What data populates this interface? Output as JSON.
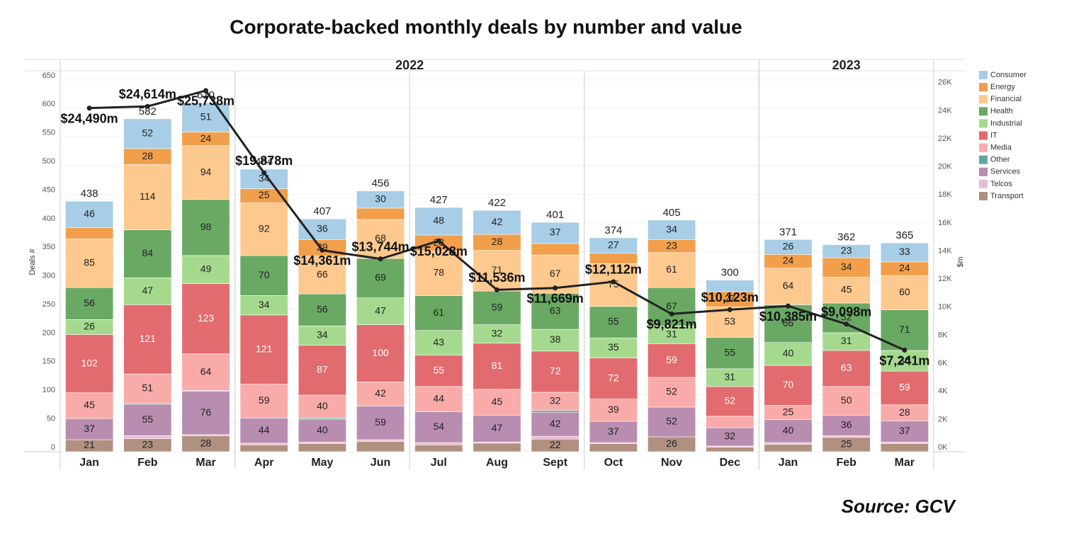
{
  "chart_data": {
    "type": "stacked-bar-line",
    "title": "Corporate-backed monthly deals by number and value",
    "source": "Source: GCV",
    "y_label": "Deals #",
    "y2_label": "$m",
    "categories": [
      "Jan",
      "Feb",
      "Mar",
      "Apr",
      "May",
      "Jun",
      "Jul",
      "Aug",
      "Sept",
      "Oct",
      "Nov",
      "Dec",
      "Jan",
      "Feb",
      "Mar"
    ],
    "year_groups": [
      {
        "name": "2022",
        "months": 12
      },
      {
        "name": "2023",
        "months": 3
      }
    ],
    "totals": [
      438,
      582,
      610,
      494,
      407,
      456,
      427,
      422,
      401,
      374,
      405,
      300,
      371,
      362,
      365
    ],
    "series": [
      {
        "name": "Transport",
        "color": "#b0907f",
        "values": [
          21,
          23,
          28,
          12,
          14,
          18,
          12,
          15,
          22,
          14,
          26,
          8,
          13,
          25,
          14
        ]
      },
      {
        "name": "Telcos",
        "color": "#e8bcd6",
        "values": [
          0,
          5,
          2,
          3,
          3,
          3,
          4,
          2,
          5,
          2,
          0,
          2,
          3,
          3,
          3
        ]
      },
      {
        "name": "Services",
        "color": "#b88db0",
        "values": [
          37,
          55,
          76,
          44,
          40,
          59,
          54,
          47,
          42,
          37,
          52,
          32,
          40,
          36,
          37
        ]
      },
      {
        "name": "Other",
        "color": "#5fa8a2",
        "values": [
          0,
          2,
          1,
          0,
          2,
          0,
          0,
          0,
          3,
          0,
          0,
          0,
          0,
          0,
          0
        ]
      },
      {
        "name": "Media",
        "color": "#f9aba9",
        "values": [
          45,
          51,
          64,
          59,
          40,
          42,
          44,
          45,
          32,
          39,
          52,
          20,
          25,
          50,
          28
        ]
      },
      {
        "name": "IT",
        "color": "#e26b6f",
        "values": [
          102,
          121,
          123,
          121,
          87,
          100,
          55,
          81,
          72,
          72,
          59,
          52,
          70,
          63,
          59
        ]
      },
      {
        "name": "Industrial",
        "color": "#a5da8e",
        "values": [
          26,
          47,
          49,
          34,
          34,
          47,
          43,
          32,
          38,
          35,
          31,
          31,
          40,
          31,
          36
        ]
      },
      {
        "name": "Health",
        "color": "#6aa964",
        "values": [
          56,
          84,
          98,
          70,
          56,
          69,
          61,
          59,
          63,
          55,
          67,
          55,
          66,
          52,
          71
        ]
      },
      {
        "name": "Financial",
        "color": "#fdc98e",
        "values": [
          85,
          114,
          94,
          92,
          66,
          68,
          78,
          71,
          67,
          75,
          61,
          53,
          64,
          45,
          60
        ]
      },
      {
        "name": "Energy",
        "color": "#f19f4b",
        "values": [
          20,
          28,
          24,
          25,
          29,
          20,
          28,
          28,
          20,
          18,
          23,
          27,
          24,
          34,
          24
        ]
      },
      {
        "name": "Consumer",
        "color": "#a7cde7",
        "values": [
          46,
          52,
          51,
          34,
          36,
          30,
          48,
          42,
          37,
          27,
          34,
          20,
          26,
          23,
          33
        ]
      }
    ],
    "line": {
      "color": "#222222",
      "axis": "y2",
      "values": [
        24490,
        24614,
        25738,
        19878,
        14361,
        13744,
        15028,
        11536,
        11669,
        12112,
        9821,
        10123,
        10385,
        9098,
        7241
      ],
      "value_labels": [
        "$24,490m",
        "$24,614m",
        "$25,738m",
        "$19,878m",
        "$14,361m",
        "$13,744m",
        "$15,028m",
        "$11,536m",
        "$11,669m",
        "$12,112m",
        "$9,821m",
        "$10,123m",
        "$10,385m",
        "$9,098m",
        "$7,241m"
      ]
    },
    "ylim": [
      0,
      666
    ],
    "yticks": [
      0,
      50,
      100,
      150,
      200,
      250,
      300,
      350,
      400,
      450,
      500,
      550,
      600,
      650
    ],
    "y2lim": [
      0,
      27150
    ],
    "y2ticks": [
      {
        "value": 0,
        "label": "0K"
      },
      {
        "value": 2000,
        "label": "2K"
      },
      {
        "value": 4000,
        "label": "4K"
      },
      {
        "value": 6000,
        "label": "6K"
      },
      {
        "value": 8000,
        "label": "8K"
      },
      {
        "value": 10000,
        "label": "10K"
      },
      {
        "value": 12000,
        "label": "12K"
      },
      {
        "value": 14000,
        "label": "14K"
      },
      {
        "value": 16000,
        "label": "16K"
      },
      {
        "value": 18000,
        "label": "18K"
      },
      {
        "value": 20000,
        "label": "20K"
      },
      {
        "value": 22000,
        "label": "22K"
      },
      {
        "value": 24000,
        "label": "24K"
      },
      {
        "value": 26000,
        "label": "26K"
      }
    ],
    "grid": true,
    "legend": "right"
  }
}
